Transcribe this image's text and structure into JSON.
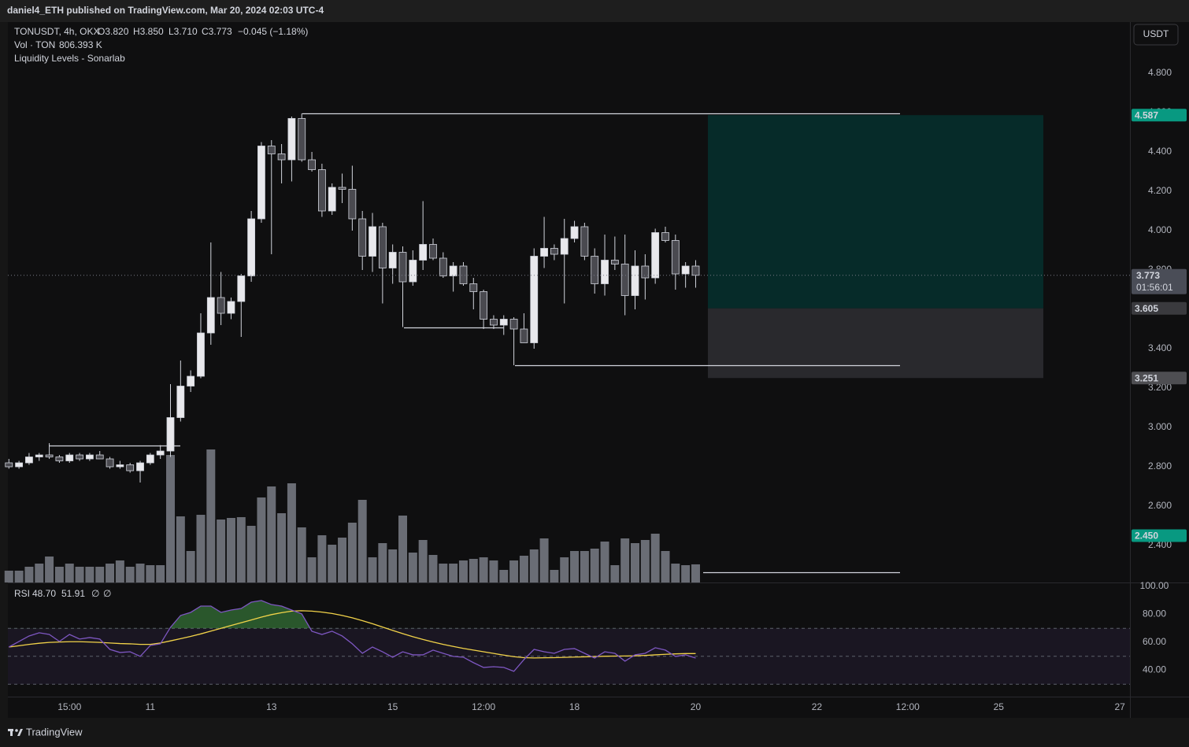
{
  "header": {
    "publisher": "daniel4_ETH published on TradingView.com, Mar 20, 2024 02:03 UTC-4"
  },
  "currency_button": "USDT",
  "footer": {
    "brand": "TradingView"
  },
  "chart_data": [
    {
      "type": "candlestick",
      "legend": {
        "symbol": "TONUSDT, 4h, OKX",
        "open": "O3.820",
        "high": "H3.850",
        "low": "L3.710",
        "close": "C3.773",
        "change": "−0.045 (−1.18%)",
        "volume_title": "Vol · TON",
        "volume_value": "806.393 K",
        "indicator": "Liquidity Levels - Sonarlab"
      },
      "open": [
        2.82,
        2.8,
        2.82,
        2.85,
        2.86,
        2.85,
        2.83,
        2.86,
        2.84,
        2.86,
        2.84,
        2.8,
        2.81,
        2.78,
        2.82,
        2.86,
        2.88,
        3.05,
        3.21,
        3.26,
        3.48,
        3.66,
        3.58,
        3.64,
        3.77,
        4.06,
        4.43,
        4.39,
        4.36,
        4.57,
        4.36,
        4.31,
        4.1,
        4.22,
        4.21,
        4.06,
        3.87,
        4.02,
        3.81,
        3.89,
        3.74,
        3.85,
        3.93,
        3.86,
        3.77,
        3.82,
        3.73,
        3.69,
        3.55,
        3.52,
        3.55,
        3.5,
        3.43,
        3.87,
        3.91,
        3.88,
        3.96,
        4.02,
        3.87,
        3.73,
        3.85,
        3.83,
        3.67,
        3.82,
        3.76,
        3.99,
        3.95,
        3.78,
        3.82
      ],
      "high": [
        2.84,
        2.83,
        2.87,
        2.87,
        2.92,
        2.86,
        2.87,
        2.87,
        2.87,
        2.88,
        2.85,
        2.83,
        2.82,
        2.83,
        2.87,
        2.91,
        3.22,
        3.34,
        3.29,
        3.58,
        3.94,
        3.79,
        3.66,
        3.78,
        4.1,
        4.45,
        4.46,
        4.44,
        4.58,
        4.596,
        4.4,
        4.34,
        4.24,
        4.29,
        4.33,
        4.1,
        4.09,
        4.04,
        3.93,
        3.92,
        3.9,
        4.15,
        3.96,
        3.89,
        3.84,
        3.84,
        3.76,
        3.7,
        3.57,
        3.57,
        3.56,
        3.58,
        3.91,
        4.07,
        3.93,
        4.06,
        4.05,
        4.04,
        3.91,
        3.98,
        3.97,
        3.98,
        3.9,
        3.88,
        4.01,
        4.02,
        3.98,
        3.84,
        3.85
      ],
      "low": [
        2.79,
        2.79,
        2.81,
        2.83,
        2.84,
        2.82,
        2.82,
        2.83,
        2.83,
        2.84,
        2.79,
        2.79,
        2.77,
        2.72,
        2.81,
        2.84,
        2.85,
        3.03,
        3.18,
        3.25,
        3.42,
        3.52,
        3.55,
        3.46,
        3.74,
        4.04,
        3.88,
        4.24,
        4.25,
        4.35,
        4.3,
        4.07,
        4.08,
        4.14,
        4.0,
        3.8,
        3.79,
        3.63,
        3.73,
        3.51,
        3.72,
        3.8,
        3.85,
        3.76,
        3.69,
        3.72,
        3.6,
        3.5,
        3.5,
        3.47,
        3.316,
        3.43,
        3.4,
        3.81,
        3.85,
        3.63,
        3.94,
        3.85,
        3.68,
        3.67,
        3.8,
        3.57,
        3.6,
        3.65,
        3.73,
        3.94,
        3.7,
        3.71,
        3.71
      ],
      "close": [
        2.8,
        2.82,
        2.85,
        2.86,
        2.85,
        2.83,
        2.86,
        2.84,
        2.86,
        2.84,
        2.8,
        2.81,
        2.78,
        2.82,
        2.86,
        2.88,
        3.05,
        3.21,
        3.26,
        3.48,
        3.66,
        3.58,
        3.64,
        3.77,
        4.06,
        4.43,
        4.39,
        4.36,
        4.57,
        4.36,
        4.31,
        4.1,
        4.22,
        4.21,
        4.06,
        3.87,
        4.02,
        3.81,
        3.89,
        3.74,
        3.85,
        3.93,
        3.86,
        3.77,
        3.82,
        3.73,
        3.69,
        3.55,
        3.52,
        3.55,
        3.5,
        3.43,
        3.87,
        3.91,
        3.88,
        3.96,
        4.02,
        3.87,
        3.73,
        3.85,
        3.83,
        3.67,
        3.82,
        3.76,
        3.99,
        3.95,
        3.78,
        3.82,
        3.773
      ],
      "volume": [
        525,
        525,
        700,
        840,
        1155,
        700,
        840,
        700,
        700,
        700,
        840,
        980,
        700,
        840,
        770,
        770,
        5670,
        2940,
        1400,
        3010,
        5915,
        2800,
        2870,
        2905,
        2520,
        3780,
        4270,
        3080,
        4410,
        2450,
        1120,
        2100,
        1680,
        1995,
        2660,
        3675,
        1120,
        1750,
        1470,
        2975,
        1330,
        1890,
        1225,
        840,
        840,
        980,
        1050,
        1120,
        980,
        560,
        980,
        1190,
        1470,
        1960,
        560,
        1120,
        1400,
        1400,
        1505,
        1820,
        770,
        1960,
        1750,
        1890,
        2170,
        1400,
        840,
        770,
        806.393
      ],
      "up_color": "#e8e8ec",
      "down_color": "#4a4a50",
      "wick_color": "#d1d4dc",
      "volume_color": "#6a6d75",
      "ylim": [
        2.212,
        5.06
      ],
      "volume_ylim": [
        0,
        24920
      ],
      "xlim": [
        -0.1,
        111
      ],
      "yticks": [
        {
          "value": 4.8,
          "label": "4.800"
        },
        {
          "value": 4.6,
          "label": "4.600"
        },
        {
          "value": 4.4,
          "label": "4.400"
        },
        {
          "value": 4.2,
          "label": "4.200"
        },
        {
          "value": 4.0,
          "label": "4.000"
        },
        {
          "value": 3.8,
          "label": "3.800"
        },
        {
          "value": 3.6,
          "label": "3.600"
        },
        {
          "value": 3.4,
          "label": "3.400"
        },
        {
          "value": 3.2,
          "label": "3.200"
        },
        {
          "value": 3.0,
          "label": "3.000"
        },
        {
          "value": 2.8,
          "label": "2.800"
        },
        {
          "value": 2.6,
          "label": "2.600"
        },
        {
          "value": 2.4,
          "label": "2.400"
        }
      ],
      "xticks": [
        {
          "value": 6,
          "label": "15:00"
        },
        {
          "value": 14,
          "label": "11"
        },
        {
          "value": 26,
          "label": "13"
        },
        {
          "value": 38,
          "label": "15"
        },
        {
          "value": 47,
          "label": "12:00"
        },
        {
          "value": 56,
          "label": "18"
        },
        {
          "value": 68,
          "label": "20"
        },
        {
          "value": 80,
          "label": "22"
        },
        {
          "value": 89,
          "label": "12:00"
        },
        {
          "value": 98,
          "label": "25"
        },
        {
          "value": 110,
          "label": "27"
        }
      ],
      "liquidity_levels": [
        4.596,
        3.508,
        3.316,
        2.908,
        2.264
      ],
      "position": {
        "target": {
          "value": 4.587,
          "label": "4.587"
        },
        "entry": {
          "value": 3.605,
          "label": "3.605"
        },
        "stop": {
          "value": 3.251,
          "label": "3.251"
        },
        "profit_color": "#062b29",
        "loss_color": "#29292d"
      },
      "last_price": {
        "value": 3.773,
        "label": "3.773",
        "countdown": "01:56:01"
      },
      "level_tag": {
        "value": 2.45,
        "label": "2.450"
      }
    },
    {
      "type": "line",
      "title": "RSI",
      "series": [
        {
          "color": "#7e57c2",
          "value_label": "48.70",
          "values": [
            56.6,
            60.6,
            64.5,
            66.8,
            65.6,
            60.6,
            65.6,
            62.3,
            63.4,
            62.3,
            54.9,
            52.7,
            53.2,
            49.9,
            57.7,
            58.9,
            70.7,
            79.2,
            81.4,
            85.9,
            85.9,
            81.4,
            83.1,
            84.2,
            88.7,
            89.9,
            87.0,
            85.9,
            83.1,
            80.3,
            67.9,
            65.6,
            67.9,
            64.5,
            58.9,
            52.1,
            56.6,
            53.2,
            49.3,
            53.2,
            51.0,
            51.0,
            54.4,
            52.1,
            49.9,
            49.3,
            45.4,
            42.0,
            42.5,
            42.0,
            39.2,
            47.6,
            54.9,
            53.2,
            52.1,
            54.9,
            55.5,
            52.1,
            48.7,
            53.2,
            52.1,
            46.5,
            51.0,
            52.1,
            56.1,
            54.4,
            49.9,
            51.0,
            48.7
          ]
        },
        {
          "color": "#f2d349",
          "value_label": "51.91",
          "values": [
            56.6,
            57.5,
            58.5,
            59.3,
            59.9,
            60.2,
            60.4,
            60.4,
            60.2,
            59.9,
            59.5,
            59.1,
            58.9,
            58.5,
            58.5,
            59.5,
            61.0,
            62.6,
            64.2,
            66.0,
            68.0,
            70.0,
            72.0,
            74.0,
            76.0,
            78.0,
            79.8,
            81.2,
            82.3,
            82.6,
            82.3,
            81.6,
            80.6,
            79.2,
            77.5,
            75.5,
            73.3,
            70.9,
            68.5,
            66.2,
            64.0,
            62.0,
            60.2,
            58.5,
            57.0,
            55.6,
            54.4,
            53.2,
            52.0,
            50.8,
            49.7,
            49.0,
            48.8,
            48.9,
            49.0,
            49.2,
            49.4,
            49.6,
            49.8,
            50.0,
            50.1,
            50.2,
            50.3,
            50.6,
            51.0,
            51.4,
            51.7,
            51.9,
            51.91
          ]
        }
      ],
      "extra_labels": [
        "∅",
        "∅"
      ],
      "ylim": [
        21.1,
        102.8
      ],
      "yticks": [
        {
          "value": 100,
          "label": "100.00"
        },
        {
          "value": 80,
          "label": "80.00"
        },
        {
          "value": 60,
          "label": "60.00"
        },
        {
          "value": 40,
          "label": "40.00"
        }
      ],
      "levels": [
        70,
        50,
        30
      ],
      "band_color": "rgba(126,87,194,0.10)",
      "overbought_color": "rgba(76,175,80,0.45)"
    }
  ]
}
